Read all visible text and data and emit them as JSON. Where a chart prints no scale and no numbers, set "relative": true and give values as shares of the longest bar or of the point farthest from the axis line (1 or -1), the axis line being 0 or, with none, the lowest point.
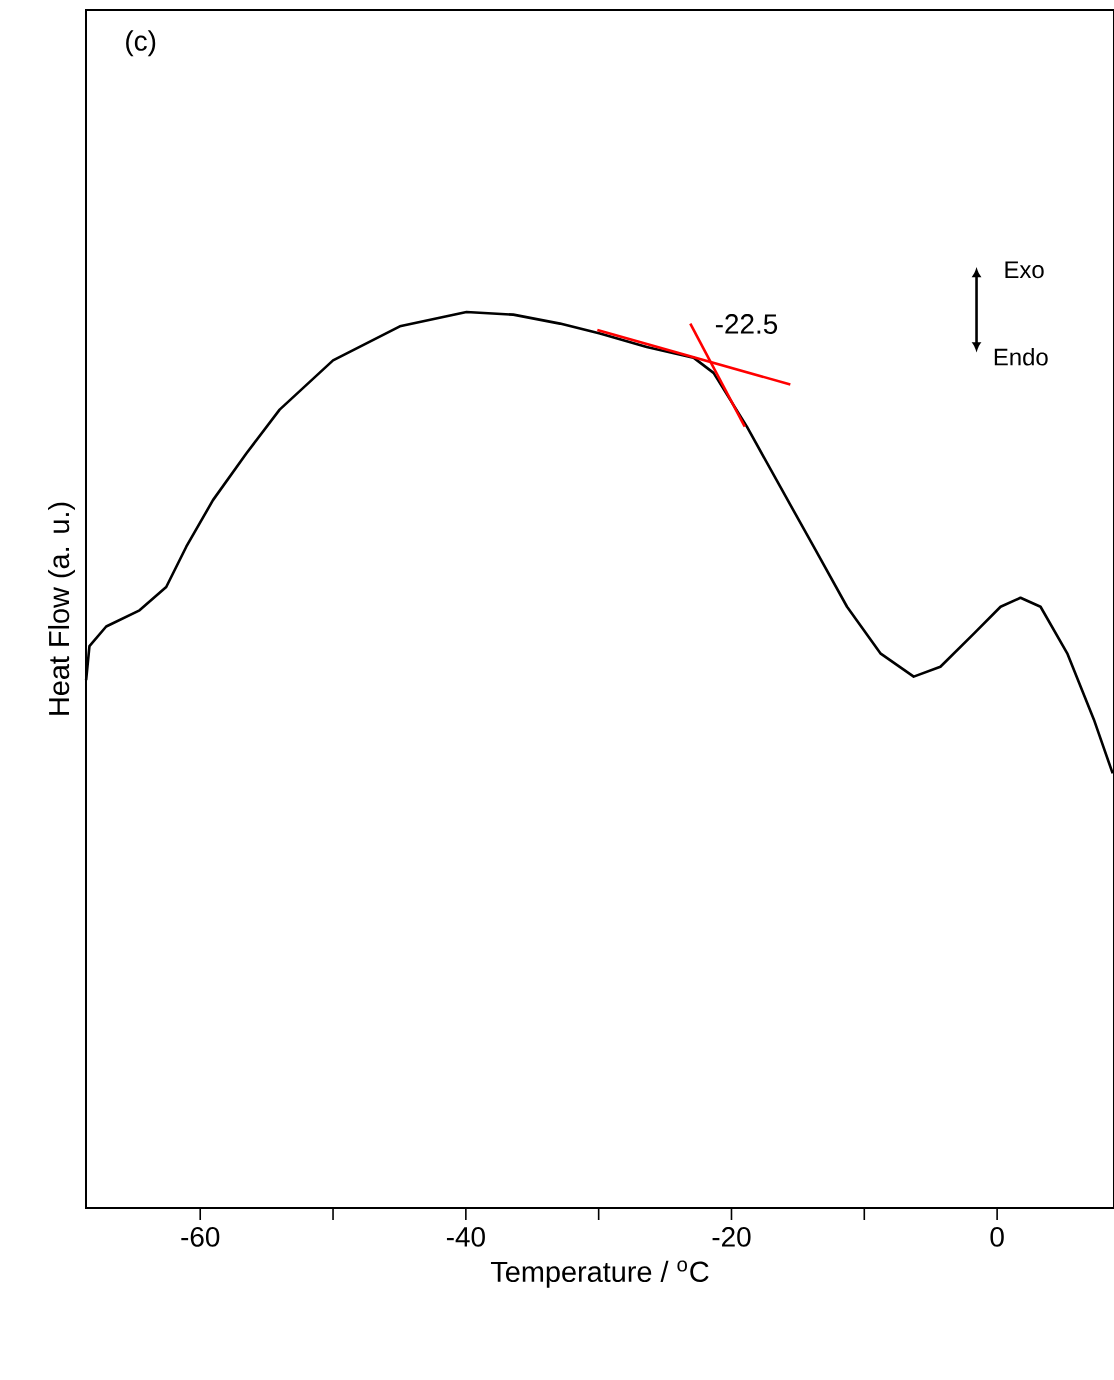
{
  "chart_data": {
    "type": "line",
    "relative": true,
    "xlabel": "Temperature / $^{o}$C",
    "ylabel": "Heat Flow (a. u.)",
    "xlim": [
      -68.6,
      8.8
    ],
    "xticks": [
      -60,
      {
        "value": -50,
        "label": null
      },
      -40,
      {
        "value": -30,
        "label": null
      },
      -20,
      {
        "value": -10,
        "label": null
      },
      0
    ],
    "annotations": [
      "(c)",
      {
        "text": "-22.5",
        "x": -22.5,
        "y": 0.955
      },
      "Exo",
      "Endo"
    ],
    "series": [
      {
        "color": "#000000",
        "x": [
          -68.59,
          -68.34,
          -67.08,
          -64.57,
          -62.56,
          -61.05,
          -59.04,
          -56.53,
          -54.02,
          -50.0,
          -44.97,
          -39.95,
          -36.43,
          -32.91,
          -29.9,
          -26.38,
          -22.86,
          -21.35,
          -18.84,
          -16.33,
          -13.81,
          -11.3,
          -8.79,
          -6.28,
          -4.27,
          -1.75,
          0.26,
          1.76,
          3.27,
          5.28,
          7.29,
          8.7
        ],
        "values": [
          0.589,
          0.627,
          0.649,
          0.667,
          0.693,
          0.738,
          0.79,
          0.842,
          0.891,
          0.946,
          0.984,
          1.0,
          0.997,
          0.987,
          0.976,
          0.961,
          0.949,
          0.932,
          0.872,
          0.805,
          0.738,
          0.671,
          0.619,
          0.593,
          0.604,
          0.641,
          0.671,
          0.681,
          0.671,
          0.619,
          0.545,
          0.485
        ]
      },
      {
        "color": "#ff0000",
        "x": [
          -30.1,
          -15.57
        ],
        "values": [
          0.98,
          0.919
        ]
      },
      {
        "color": "#ff0000",
        "x": [
          -23.1,
          -19.0
        ],
        "values": [
          0.987,
          0.872
        ]
      }
    ]
  }
}
